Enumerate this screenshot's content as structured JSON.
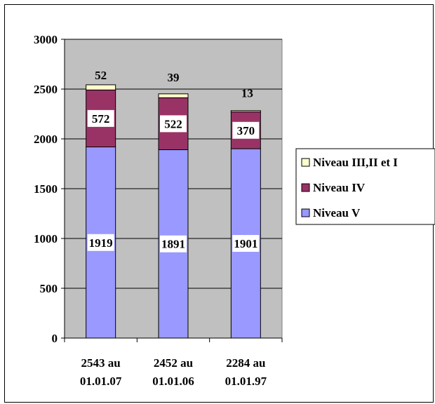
{
  "chart_data": {
    "type": "bar",
    "stacked": true,
    "categories": [
      "2543 au 01.01.07",
      "2452 au 01.01.06",
      "2284 au 01.01.97"
    ],
    "category_lines": [
      [
        "2543 au",
        "01.01.07"
      ],
      [
        "2452 au",
        "01.01.06"
      ],
      [
        "2284 au",
        "01.01.97"
      ]
    ],
    "series": [
      {
        "name": "Niveau V",
        "values": [
          1919,
          1891,
          1901
        ],
        "color": "#9999ff"
      },
      {
        "name": "Niveau IV",
        "values": [
          572,
          522,
          370
        ],
        "color": "#993366"
      },
      {
        "name": "Niveau III,II et I",
        "values": [
          52,
          39,
          13
        ],
        "color": "#ffffcc"
      }
    ],
    "legend_order": [
      "Niveau III,II et I",
      "Niveau IV",
      "Niveau V"
    ],
    "yticks": [
      0,
      500,
      1000,
      1500,
      2000,
      2500,
      3000
    ],
    "ylim": [
      0,
      3000
    ],
    "grid": "horizontal",
    "plot_background": "#c0c0c0",
    "legend_position": "right"
  }
}
